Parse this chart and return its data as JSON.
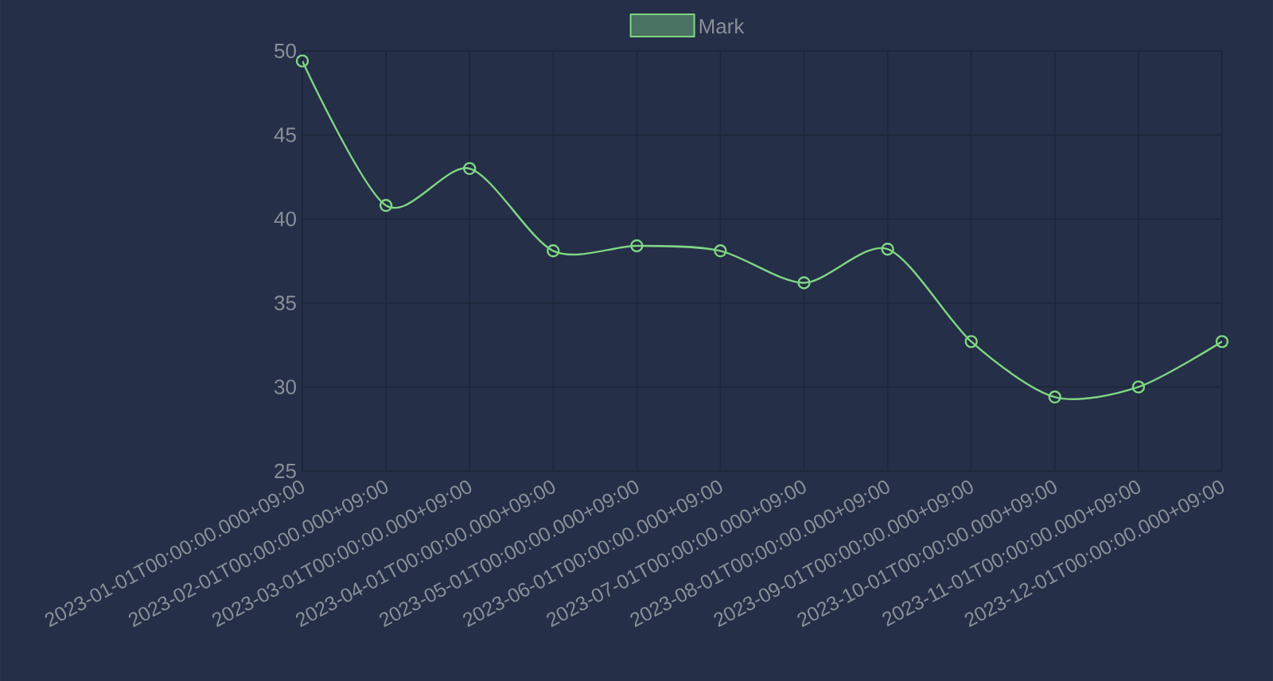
{
  "chart_data": {
    "type": "line",
    "categories": [
      "2023-01-01T00:00:00.000+09:00",
      "2023-02-01T00:00:00.000+09:00",
      "2023-03-01T00:00:00.000+09:00",
      "2023-04-01T00:00:00.000+09:00",
      "2023-05-01T00:00:00.000+09:00",
      "2023-06-01T00:00:00.000+09:00",
      "2023-07-01T00:00:00.000+09:00",
      "2023-08-01T00:00:00.000+09:00",
      "2023-09-01T00:00:00.000+09:00",
      "2023-10-01T00:00:00.000+09:00",
      "2023-11-01T00:00:00.000+09:00",
      "2023-12-01T00:00:00.000+09:00"
    ],
    "series": [
      {
        "name": "Mark",
        "color": "#7fd683",
        "values": [
          49.4,
          40.8,
          43.0,
          38.1,
          38.4,
          38.1,
          36.2,
          38.2,
          32.7,
          29.4,
          30.0,
          32.7
        ]
      }
    ],
    "ylim": [
      25,
      50
    ],
    "yticks": [
      25,
      30,
      35,
      40,
      45,
      50
    ],
    "grid": true,
    "legend": "top",
    "marker": "circle",
    "line_style": "solid"
  }
}
